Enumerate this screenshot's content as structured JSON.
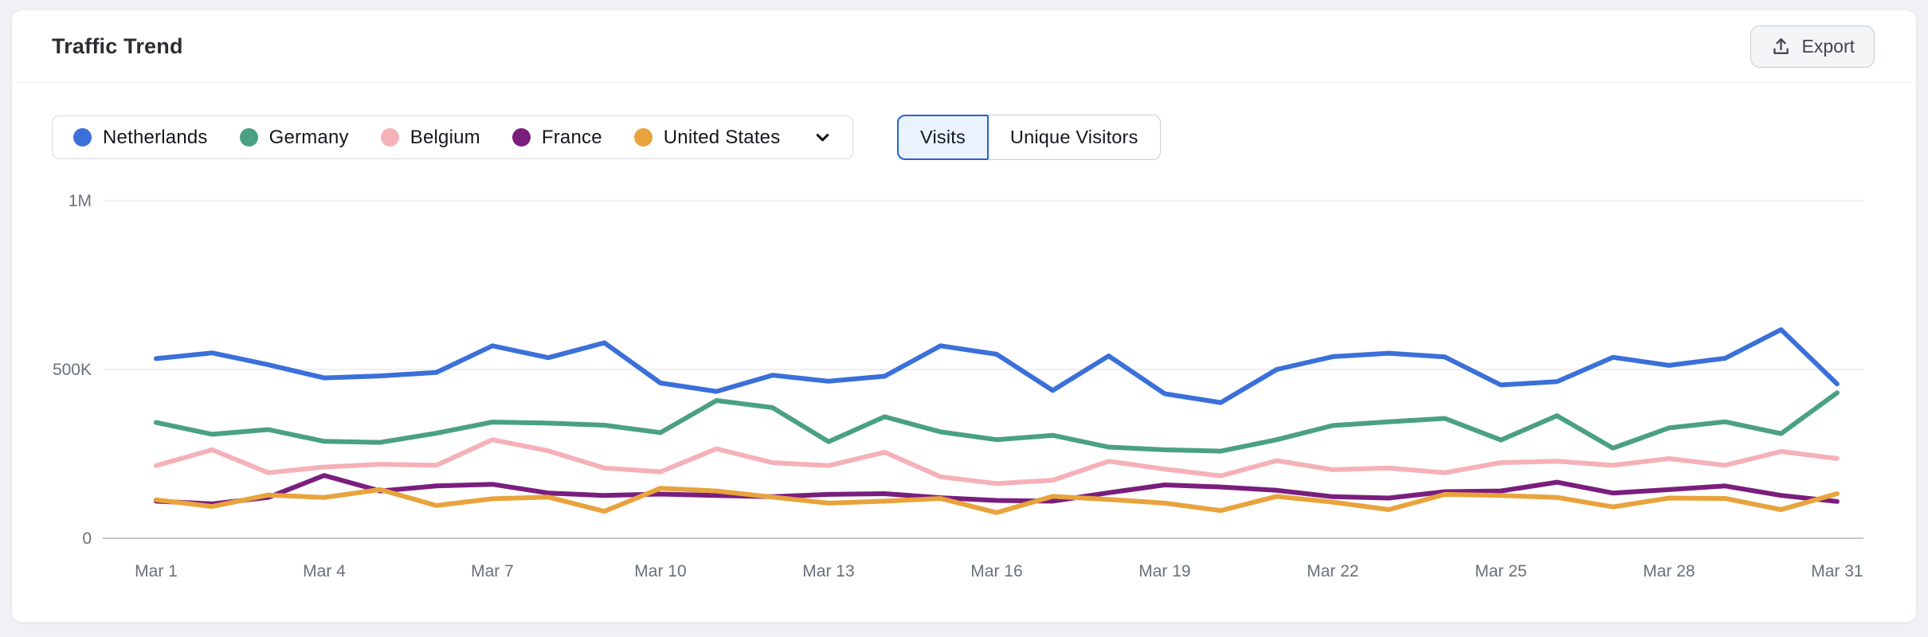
{
  "header": {
    "title": "Traffic Trend",
    "export_label": "Export"
  },
  "legend": {
    "items": [
      {
        "label": "Netherlands",
        "color": "#3B70D9"
      },
      {
        "label": "Germany",
        "color": "#4AA181"
      },
      {
        "label": "Belgium",
        "color": "#F5B1B8"
      },
      {
        "label": "France",
        "color": "#7A1E7E"
      },
      {
        "label": "United States",
        "color": "#E8A33D"
      }
    ],
    "chevron_icon": "chevron-down"
  },
  "toggle": {
    "options": [
      {
        "label": "Visits",
        "selected": true
      },
      {
        "label": "Unique Visitors",
        "selected": false
      }
    ]
  },
  "chart_data": {
    "type": "line",
    "title": "Traffic Trend",
    "xlabel": "",
    "ylabel": "",
    "ylim": [
      0,
      1000000
    ],
    "grid": "horizontal",
    "legend_position": "top-left",
    "y_ticks": [
      {
        "label": "0",
        "value": 0
      },
      {
        "label": "500K",
        "value": 500000
      },
      {
        "label": "1M",
        "value": 1000000
      }
    ],
    "x": [
      "Mar 1",
      "Mar 2",
      "Mar 3",
      "Mar 4",
      "Mar 5",
      "Mar 6",
      "Mar 7",
      "Mar 8",
      "Mar 9",
      "Mar 10",
      "Mar 11",
      "Mar 12",
      "Mar 13",
      "Mar 14",
      "Mar 15",
      "Mar 16",
      "Mar 17",
      "Mar 18",
      "Mar 19",
      "Mar 20",
      "Mar 21",
      "Mar 22",
      "Mar 23",
      "Mar 24",
      "Mar 25",
      "Mar 26",
      "Mar 27",
      "Mar 28",
      "Mar 29",
      "Mar 30",
      "Mar 31"
    ],
    "x_tick_shown_every": 3,
    "series": [
      {
        "name": "Netherlands",
        "color": "#3B70D9",
        "values": [
          532000,
          549000,
          514000,
          475000,
          481000,
          491000,
          570000,
          535000,
          579000,
          460000,
          435000,
          483000,
          465000,
          480000,
          570000,
          545000,
          438000,
          540000,
          428000,
          402000,
          500000,
          538000,
          548000,
          537000,
          454000,
          464000,
          536000,
          512000,
          533000,
          618000,
          457000
        ]
      },
      {
        "name": "Germany",
        "color": "#4AA181",
        "values": [
          343000,
          308000,
          322000,
          287000,
          284000,
          311000,
          344000,
          341000,
          335000,
          313000,
          408000,
          387000,
          286000,
          360000,
          315000,
          292000,
          305000,
          270000,
          262000,
          258000,
          292000,
          334000,
          345000,
          355000,
          291000,
          363000,
          267000,
          327000,
          345000,
          310000,
          431000
        ]
      },
      {
        "name": "Belgium",
        "color": "#F5B1B8",
        "values": [
          215000,
          262000,
          194000,
          211000,
          219000,
          216000,
          292000,
          259000,
          208000,
          197000,
          265000,
          224000,
          215000,
          255000,
          182000,
          162000,
          172000,
          228000,
          205000,
          185000,
          230000,
          203000,
          208000,
          194000,
          224000,
          228000,
          216000,
          236000,
          216000,
          257000,
          236000
        ]
      },
      {
        "name": "France",
        "color": "#7A1E7E",
        "values": [
          110000,
          102000,
          121000,
          186000,
          140000,
          155000,
          160000,
          134000,
          127000,
          131000,
          127000,
          123000,
          130000,
          132000,
          120000,
          112000,
          110000,
          135000,
          158000,
          152000,
          142000,
          123000,
          119000,
          138000,
          140000,
          166000,
          134000,
          144000,
          155000,
          127000,
          109000
        ]
      },
      {
        "name": "United States",
        "color": "#E8A33D",
        "values": [
          114000,
          94000,
          128000,
          121000,
          144000,
          97000,
          117000,
          122000,
          80000,
          148000,
          140000,
          122000,
          104000,
          110000,
          118000,
          76000,
          124000,
          115000,
          104000,
          82000,
          124000,
          107000,
          85000,
          130000,
          127000,
          121000,
          93000,
          119000,
          118000,
          85000,
          132000
        ]
      }
    ],
    "colors": {
      "grid_line": "#E8EAED",
      "zero_axis_line": "#C2C7CF",
      "tick_text": "#6A707C"
    }
  }
}
